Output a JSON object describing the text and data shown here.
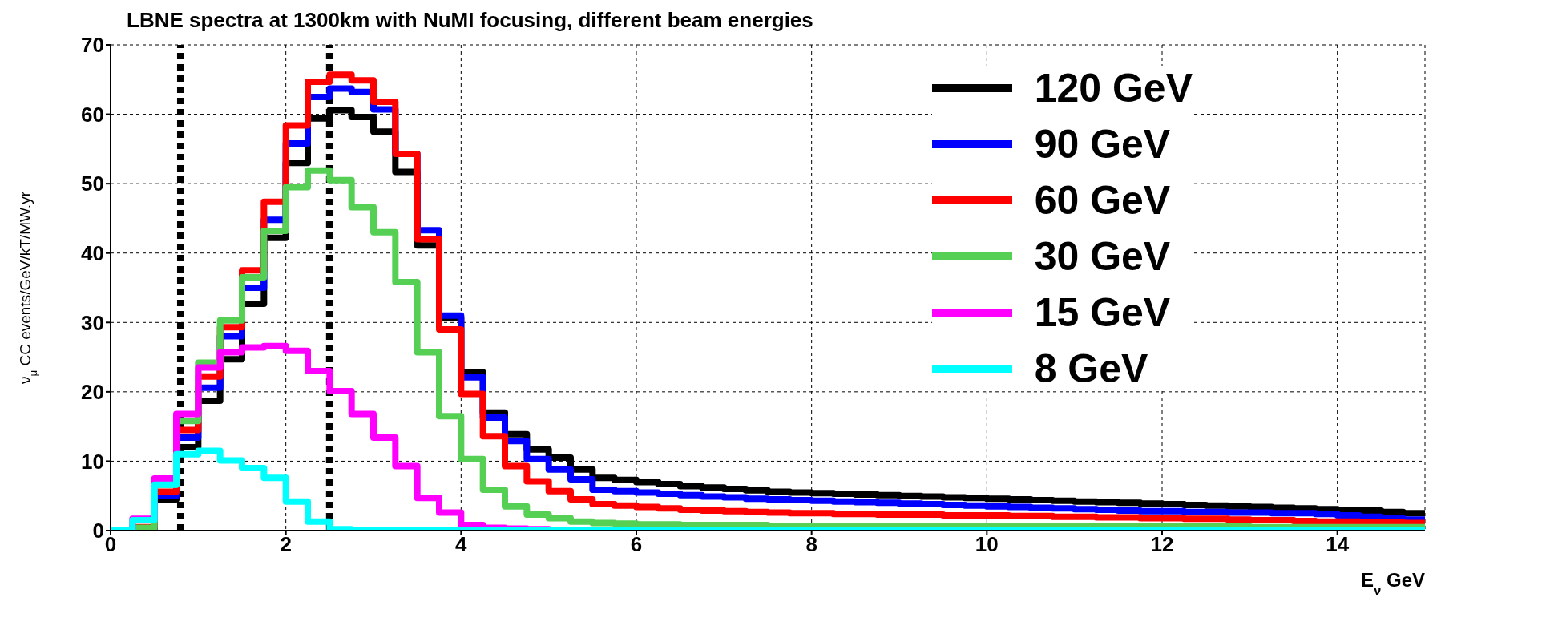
{
  "chart_data": {
    "type": "histogram",
    "title": "LBNE spectra at 1300km with NuMI focusing, different beam energies",
    "xlabel": "E$_{ν}$ GeV",
    "ylabel": "ν$_{μ}$ CC events/GeV/kT/MW.yr",
    "bins": [
      0,
      0.25,
      0.5,
      0.75,
      1,
      1.25,
      1.5,
      1.75,
      2,
      2.25,
      2.5,
      2.75,
      3,
      3.25,
      3.5,
      3.75,
      4,
      4.25,
      4.5,
      4.75,
      5,
      5.25,
      5.5,
      5.75,
      6,
      6.25,
      6.5,
      6.75,
      7,
      7.25,
      7.5,
      7.75,
      8,
      8.25,
      8.5,
      8.75,
      9,
      9.25,
      9.5,
      9.75,
      10,
      10.25,
      10.5,
      10.75,
      11,
      11.25,
      11.5,
      11.75,
      12,
      12.25,
      12.5,
      12.75,
      13,
      13.25,
      13.5,
      13.75,
      14,
      14.25,
      14.5,
      14.75,
      15
    ],
    "series": [
      {
        "name": "120 GeV",
        "color": "#000000",
        "values": [
          0,
          0.3,
          4.5,
          12,
          18.7,
          24.7,
          32.7,
          42.2,
          53,
          59.4,
          60.6,
          59.6,
          57.5,
          51.7,
          41.1,
          30.7,
          22.8,
          17,
          13.9,
          11.7,
          10.5,
          8.8,
          7.6,
          7.3,
          7.0,
          6.7,
          6.4,
          6.2,
          6.0,
          5.8,
          5.6,
          5.5,
          5.4,
          5.3,
          5.2,
          5.1,
          5.0,
          4.9,
          4.8,
          4.7,
          4.6,
          4.5,
          4.4,
          4.3,
          4.2,
          4.1,
          4.0,
          3.9,
          3.8,
          3.7,
          3.6,
          3.5,
          3.4,
          3.3,
          3.2,
          3.1,
          3.0,
          2.9,
          2.7,
          2.5
        ]
      },
      {
        "name": "90 GeV",
        "color": "#0000ff",
        "values": [
          0,
          0.4,
          5,
          13.4,
          20.6,
          28,
          35,
          44.8,
          55.8,
          62.5,
          63.7,
          63.2,
          60.7,
          54.3,
          43.3,
          31,
          22.1,
          16.3,
          12.9,
          10.3,
          8.8,
          7.4,
          5.9,
          5.7,
          5.5,
          5.3,
          5.1,
          4.9,
          4.8,
          4.6,
          4.5,
          4.4,
          4.3,
          4.2,
          4.1,
          4.0,
          3.9,
          3.8,
          3.7,
          3.6,
          3.5,
          3.4,
          3.3,
          3.2,
          3.1,
          3.0,
          2.9,
          2.8,
          2.8,
          2.7,
          2.7,
          2.6,
          2.6,
          2.5,
          2.5,
          2.4,
          2.2,
          2.0,
          1.8,
          1.6
        ]
      },
      {
        "name": "60 GeV",
        "color": "#ff0000",
        "values": [
          0,
          0.5,
          5.6,
          14.5,
          22.2,
          29.3,
          37.5,
          47.4,
          58.4,
          64.7,
          65.7,
          64.9,
          61.8,
          54.3,
          42,
          29,
          19.7,
          13.6,
          9.3,
          7.1,
          5.7,
          4.5,
          3.8,
          3.6,
          3.4,
          3.2,
          3.0,
          2.9,
          2.8,
          2.7,
          2.6,
          2.5,
          2.5,
          2.4,
          2.4,
          2.3,
          2.3,
          2.3,
          2.2,
          2.2,
          2.2,
          2.1,
          2.1,
          2.0,
          2.0,
          1.9,
          1.9,
          1.8,
          1.8,
          1.7,
          1.7,
          1.6,
          1.5,
          1.5,
          1.4,
          1.3,
          1.3,
          1.2,
          1.2,
          1.1
        ]
      },
      {
        "name": "30 GeV",
        "color": "#55d055",
        "values": [
          0,
          0.4,
          6.6,
          15.8,
          24.2,
          30.3,
          36.5,
          43.2,
          49.5,
          51.9,
          50.5,
          46.6,
          43,
          35.8,
          25.7,
          16.5,
          10.3,
          5.9,
          3.5,
          2.3,
          1.8,
          1.3,
          1.1,
          1.0,
          0.9,
          0.9,
          0.8,
          0.8,
          0.8,
          0.8,
          0.7,
          0.7,
          0.7,
          0.7,
          0.7,
          0.7,
          0.7,
          0.7,
          0.7,
          0.7,
          0.7,
          0.7,
          0.7,
          0.7,
          0.6,
          0.6,
          0.6,
          0.6,
          0.6,
          0.6,
          0.6,
          0.6,
          0.5,
          0.5,
          0.5,
          0.5,
          0.5,
          0.5,
          0.5,
          0.5
        ]
      },
      {
        "name": "15 GeV",
        "color": "#ff00ff",
        "values": [
          0,
          1.7,
          7.5,
          16.8,
          23.5,
          25.7,
          26.4,
          26.6,
          25.9,
          23,
          20.1,
          16.8,
          13.4,
          9.3,
          4.7,
          2.6,
          0.8,
          0.4,
          0.3,
          0.2,
          0.1,
          0.1,
          0.1,
          0.1,
          0.1,
          0.1,
          0.1,
          0.1,
          0.1,
          0.1,
          0.1,
          0.1,
          0,
          0,
          0,
          0,
          0,
          0,
          0,
          0,
          0,
          0,
          0,
          0,
          0,
          0,
          0,
          0,
          0,
          0,
          0,
          0,
          0,
          0,
          0,
          0,
          0,
          0,
          0,
          0
        ]
      },
      {
        "name": "8 GeV",
        "color": "#00ffff",
        "values": [
          0,
          1.5,
          6.6,
          11,
          11.5,
          10.1,
          9,
          7.6,
          4.2,
          1.3,
          0.2,
          0.1,
          0,
          0,
          0,
          0,
          0,
          0,
          0,
          0,
          0,
          0,
          0,
          0,
          0,
          0,
          0,
          0,
          0,
          0,
          0,
          0,
          0,
          0,
          0,
          0,
          0,
          0,
          0,
          0,
          0,
          0,
          0,
          0,
          0,
          0,
          0,
          0,
          0,
          0,
          0,
          0,
          0,
          0,
          0,
          0,
          0,
          0,
          0,
          0
        ]
      }
    ],
    "xlim": [
      0,
      15
    ],
    "xticks": [
      0,
      2,
      4,
      6,
      8,
      10,
      12,
      14
    ],
    "ylim": [
      0,
      70
    ],
    "yticks": [
      0,
      10,
      20,
      30,
      40,
      50,
      60,
      70
    ],
    "ref_lines": [
      {
        "axis": "x",
        "value": 0.8,
        "color": "#000000",
        "line_style": "dashed"
      },
      {
        "axis": "x",
        "value": 2.5,
        "color": "#000000",
        "line_style": "dashed"
      }
    ],
    "grid": true,
    "legend": "top right",
    "line_style": "solid"
  }
}
